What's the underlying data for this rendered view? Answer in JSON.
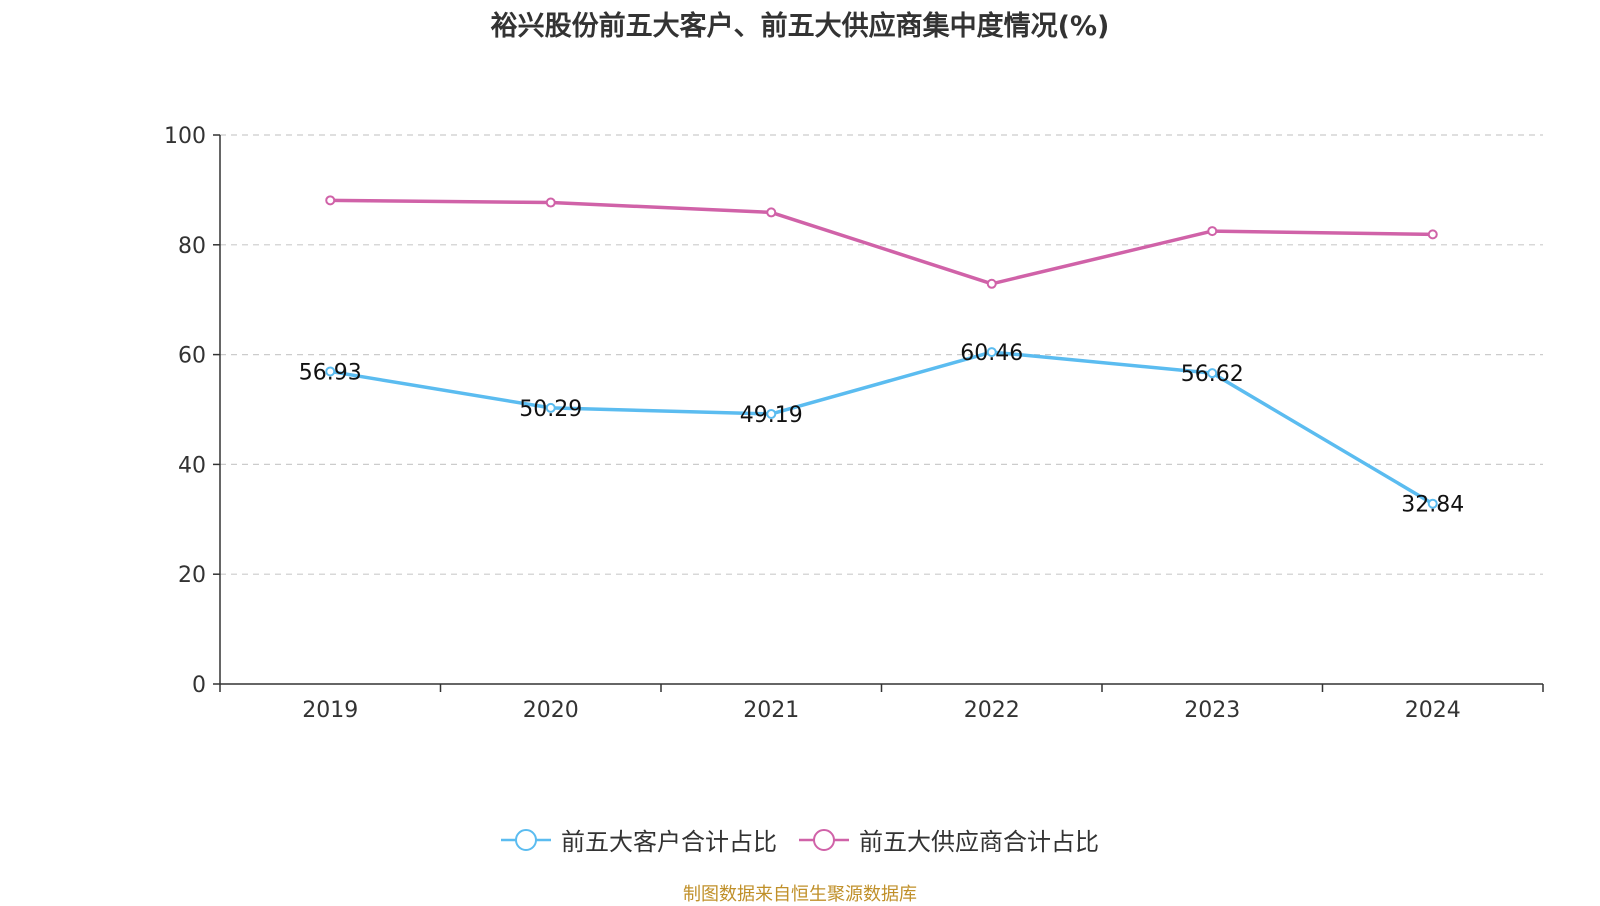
{
  "title": "裕兴股份前五大客户、前五大供应商集中度情况(%)",
  "source": "制图数据来自恒生聚源数据库",
  "colors": {
    "customer": "#5bbcf0",
    "supplier": "#d062a8",
    "source_text": "#c0902a"
  },
  "chart_data": {
    "type": "line",
    "title": "裕兴股份前五大客户、前五大供应商集中度情况(%)",
    "categories": [
      "2019",
      "2020",
      "2021",
      "2022",
      "2023",
      "2024"
    ],
    "ylim": [
      0,
      100
    ],
    "yticks": [
      0,
      20,
      40,
      60,
      80,
      100
    ],
    "grid": true,
    "legend_position": "bottom",
    "series": [
      {
        "name": "前五大客户合计占比",
        "values": [
          56.93,
          50.29,
          49.19,
          60.46,
          56.62,
          32.84
        ],
        "data_labels": [
          "56.93",
          "50.29",
          "49.19",
          "60.46",
          "56.62",
          "32.84"
        ]
      },
      {
        "name": "前五大供应商合计占比",
        "values": [
          88.1,
          87.7,
          85.9,
          72.9,
          82.5,
          81.9
        ]
      }
    ]
  }
}
